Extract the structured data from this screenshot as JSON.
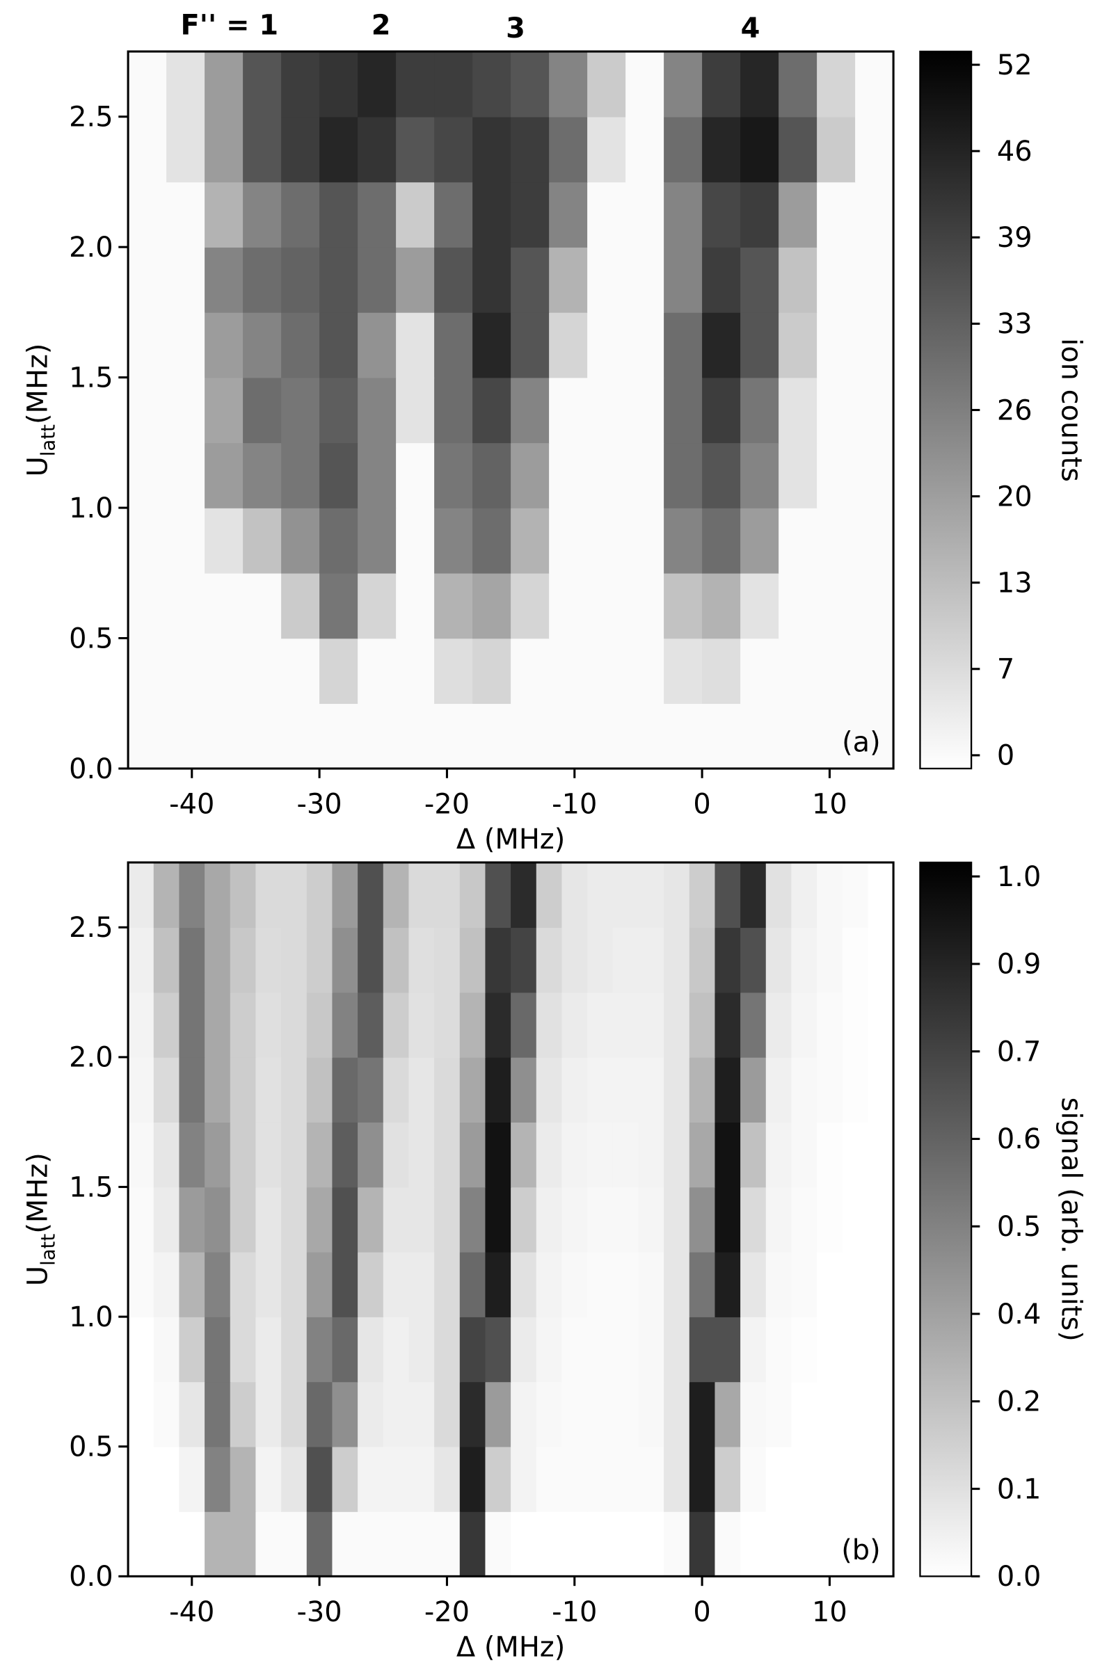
{
  "chart_data": [
    {
      "type": "heatmap",
      "annotations": [
        "F'' = 1",
        "2",
        "3",
        "4"
      ],
      "panel_label": "(a)",
      "xlabel": "Δ (MHz)",
      "ylabel": [
        "U",
        "latt",
        "(MHz)"
      ],
      "colorbar_label": "ion counts",
      "x": [
        -43.5,
        -40.5,
        -37.5,
        -34.5,
        -31.5,
        -28.5,
        -25.5,
        -22.5,
        -19.5,
        -16.5,
        -13.5,
        -10.5,
        -7.5,
        -4.5,
        -1.5,
        1.5,
        4.5,
        7.5,
        10.5,
        13.5
      ],
      "y": [
        0.125,
        0.375,
        0.625,
        0.875,
        1.125,
        1.375,
        1.625,
        1.875,
        2.125,
        2.375,
        2.625
      ],
      "z": [
        [
          0,
          0,
          0,
          0,
          0,
          0,
          0,
          0,
          0,
          0,
          0,
          0,
          0,
          0,
          0,
          0,
          0,
          0,
          0,
          0
        ],
        [
          0,
          0,
          0,
          0,
          0,
          8,
          0,
          0,
          6,
          8,
          0,
          0,
          0,
          0,
          5,
          6,
          0,
          0,
          0,
          0
        ],
        [
          0,
          0,
          0,
          0,
          10,
          28,
          8,
          0,
          15,
          18,
          8,
          0,
          0,
          0,
          12,
          15,
          5,
          0,
          0,
          0
        ],
        [
          0,
          0,
          5,
          12,
          22,
          30,
          25,
          0,
          25,
          30,
          15,
          0,
          0,
          0,
          25,
          30,
          20,
          0,
          0,
          0
        ],
        [
          0,
          0,
          20,
          25,
          28,
          35,
          25,
          0,
          28,
          32,
          20,
          0,
          0,
          0,
          30,
          35,
          25,
          5,
          0,
          0
        ],
        [
          0,
          0,
          18,
          30,
          28,
          33,
          25,
          5,
          30,
          38,
          25,
          0,
          0,
          0,
          30,
          40,
          28,
          5,
          0,
          0
        ],
        [
          0,
          0,
          20,
          25,
          30,
          35,
          22,
          5,
          30,
          45,
          35,
          8,
          0,
          0,
          30,
          45,
          35,
          10,
          0,
          0
        ],
        [
          0,
          0,
          25,
          30,
          32,
          35,
          30,
          20,
          35,
          42,
          35,
          15,
          0,
          0,
          25,
          40,
          35,
          12,
          0,
          0
        ],
        [
          0,
          0,
          15,
          25,
          30,
          35,
          30,
          10,
          30,
          42,
          40,
          25,
          0,
          0,
          25,
          38,
          40,
          20,
          0,
          0
        ],
        [
          0,
          5,
          20,
          35,
          40,
          45,
          42,
          35,
          38,
          42,
          40,
          30,
          5,
          0,
          30,
          45,
          48,
          35,
          10,
          0
        ],
        [
          0,
          5,
          20,
          35,
          40,
          42,
          45,
          40,
          40,
          38,
          35,
          25,
          10,
          0,
          25,
          40,
          45,
          30,
          8,
          0
        ]
      ],
      "xlim": [
        -45,
        15
      ],
      "xticks": [
        -40,
        -30,
        -20,
        -10,
        0,
        10
      ],
      "ylim": [
        0,
        2.75
      ],
      "yticks": [
        {
          "value": 0,
          "label": "0.0"
        },
        0.5,
        {
          "value": 1,
          "label": "1.0"
        },
        1.5,
        {
          "value": 2,
          "label": "2.0"
        },
        2.5
      ],
      "zlim": [
        -1,
        53
      ],
      "zticks": [
        0,
        {
          "value": 6.5,
          "label": "7"
        },
        13,
        {
          "value": 19.5,
          "label": "20"
        },
        26,
        {
          "value": 32.5,
          "label": "33"
        },
        39,
        {
          "value": 45.5,
          "label": "46"
        },
        52
      ],
      "colormap": [
        "#ffffff",
        "#000000"
      ]
    },
    {
      "type": "heatmap",
      "panel_label": "(b)",
      "xlabel": "Δ (MHz)",
      "ylabel": [
        "U",
        "latt",
        "(MHz)"
      ],
      "colorbar_label": "signal (arb. units)",
      "x": [
        -44,
        -42,
        -40,
        -38,
        -36,
        -34,
        -32,
        -30,
        -28,
        -26,
        -24,
        -22,
        -20,
        -18,
        -16,
        -14,
        -12,
        -10,
        -8,
        -6,
        -4,
        -2,
        0,
        2,
        4,
        6,
        8,
        10,
        12,
        14
      ],
      "y": [
        0.125,
        0.375,
        0.625,
        0.875,
        1.125,
        1.375,
        1.625,
        1.875,
        2.125,
        2.375,
        2.625
      ],
      "z": [
        [
          0,
          0,
          0,
          0.3,
          0.3,
          0.02,
          0.02,
          0.6,
          0.02,
          0.02,
          0.02,
          0.02,
          0.02,
          0.8,
          0.02,
          0,
          0,
          0,
          0,
          0,
          0,
          0.02,
          0.8,
          0.02,
          0,
          0,
          0,
          0,
          0,
          0
        ],
        [
          0,
          0,
          0.05,
          0.5,
          0.3,
          0.05,
          0.1,
          0.7,
          0.2,
          0.05,
          0.05,
          0.05,
          0.1,
          0.9,
          0.2,
          0.05,
          0.02,
          0.02,
          0.02,
          0.02,
          0.02,
          0.1,
          0.9,
          0.2,
          0.02,
          0,
          0,
          0,
          0,
          0
        ],
        [
          0,
          0.02,
          0.1,
          0.55,
          0.2,
          0.08,
          0.15,
          0.6,
          0.45,
          0.08,
          0.06,
          0.06,
          0.15,
          0.85,
          0.4,
          0.05,
          0.03,
          0.02,
          0.02,
          0.02,
          0.03,
          0.1,
          0.9,
          0.35,
          0.03,
          0.02,
          0,
          0,
          0,
          0
        ],
        [
          0,
          0.03,
          0.2,
          0.55,
          0.15,
          0.08,
          0.15,
          0.5,
          0.6,
          0.1,
          0.06,
          0.08,
          0.15,
          0.75,
          0.7,
          0.08,
          0.04,
          0.02,
          0.02,
          0.02,
          0.03,
          0.1,
          0.7,
          0.7,
          0.05,
          0.02,
          0.01,
          0,
          0,
          0
        ],
        [
          0.02,
          0.05,
          0.3,
          0.5,
          0.15,
          0.1,
          0.15,
          0.4,
          0.7,
          0.2,
          0.08,
          0.08,
          0.15,
          0.6,
          0.9,
          0.12,
          0.05,
          0.03,
          0.02,
          0.02,
          0.03,
          0.1,
          0.55,
          0.9,
          0.1,
          0.03,
          0.02,
          0,
          0,
          0
        ],
        [
          0.02,
          0.08,
          0.4,
          0.45,
          0.2,
          0.1,
          0.15,
          0.35,
          0.7,
          0.3,
          0.1,
          0.1,
          0.15,
          0.5,
          0.95,
          0.2,
          0.06,
          0.04,
          0.03,
          0.03,
          0.04,
          0.1,
          0.45,
          0.95,
          0.15,
          0.04,
          0.02,
          0.01,
          0,
          0
        ],
        [
          0.03,
          0.1,
          0.5,
          0.4,
          0.2,
          0.12,
          0.15,
          0.3,
          0.65,
          0.45,
          0.12,
          0.1,
          0.15,
          0.4,
          0.95,
          0.3,
          0.08,
          0.05,
          0.04,
          0.04,
          0.05,
          0.1,
          0.35,
          0.95,
          0.25,
          0.05,
          0.03,
          0.01,
          0,
          0
        ],
        [
          0.04,
          0.15,
          0.55,
          0.35,
          0.2,
          0.12,
          0.15,
          0.25,
          0.6,
          0.55,
          0.15,
          0.1,
          0.15,
          0.35,
          0.9,
          0.45,
          0.1,
          0.06,
          0.05,
          0.05,
          0.05,
          0.1,
          0.3,
          0.9,
          0.4,
          0.06,
          0.03,
          0.02,
          0.01,
          0
        ],
        [
          0.05,
          0.2,
          0.55,
          0.35,
          0.2,
          0.13,
          0.15,
          0.22,
          0.5,
          0.65,
          0.2,
          0.12,
          0.14,
          0.3,
          0.85,
          0.6,
          0.12,
          0.08,
          0.06,
          0.06,
          0.06,
          0.1,
          0.25,
          0.85,
          0.55,
          0.08,
          0.04,
          0.02,
          0.01,
          0
        ],
        [
          0.06,
          0.25,
          0.55,
          0.35,
          0.22,
          0.14,
          0.15,
          0.2,
          0.45,
          0.7,
          0.25,
          0.13,
          0.14,
          0.25,
          0.8,
          0.75,
          0.15,
          0.1,
          0.08,
          0.07,
          0.07,
          0.1,
          0.22,
          0.8,
          0.7,
          0.1,
          0.05,
          0.03,
          0.01,
          0
        ],
        [
          0.08,
          0.3,
          0.5,
          0.35,
          0.25,
          0.15,
          0.15,
          0.2,
          0.4,
          0.7,
          0.3,
          0.15,
          0.15,
          0.22,
          0.7,
          0.85,
          0.2,
          0.1,
          0.08,
          0.08,
          0.08,
          0.1,
          0.2,
          0.7,
          0.85,
          0.12,
          0.06,
          0.03,
          0.02,
          0
        ]
      ],
      "xlim": [
        -45,
        15
      ],
      "xticks": [
        -40,
        -30,
        -20,
        -10,
        0,
        10
      ],
      "ylim": [
        0,
        2.75
      ],
      "yticks": [
        {
          "value": 0,
          "label": "0.0"
        },
        0.5,
        {
          "value": 1,
          "label": "1.0"
        },
        1.5,
        {
          "value": 2,
          "label": "2.0"
        },
        2.5
      ],
      "zlim": [
        0,
        1.02
      ],
      "zticks": [
        {
          "value": 0,
          "label": "0.0"
        },
        {
          "value": 0.125,
          "label": "0.1"
        },
        {
          "value": 0.25,
          "label": "0.2"
        },
        {
          "value": 0.375,
          "label": "0.4"
        },
        0.5,
        {
          "value": 0.625,
          "label": "0.6"
        },
        {
          "value": 0.75,
          "label": "0.7"
        },
        {
          "value": 0.875,
          "label": "0.9"
        },
        {
          "value": 1,
          "label": "1.0"
        }
      ],
      "colormap": [
        "#ffffff",
        "#000000"
      ]
    }
  ]
}
